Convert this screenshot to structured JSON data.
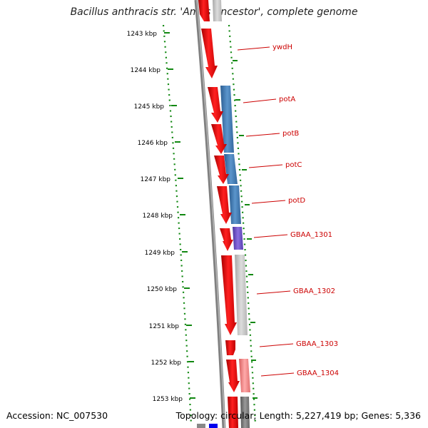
{
  "title": "Bacillus anthracis str. 'Ames Ancestor', complete genome",
  "footer": {
    "accession": "Accession: NC_007530",
    "summary": "Topology: circular; Length: 5,227,419 bp; Genes: 5,336"
  },
  "colors": {
    "tick": "#118811",
    "backbone": "#808080",
    "label": "#cc0000",
    "gene_red": "#ee0000",
    "gene_blue": "#3d78b4",
    "gene_purple": "#6b4fc8",
    "gene_gray": "#c4c4c4",
    "gene_pink": "#f08a8a"
  },
  "ticks": [
    "1243 kbp",
    "1244 kbp",
    "1245 kbp",
    "1246 kbp",
    "1247 kbp",
    "1248 kbp",
    "1249 kbp",
    "1250 kbp",
    "1251 kbp",
    "1252 kbp",
    "1253 kbp"
  ],
  "gene_labels": [
    "ywdH",
    "potA",
    "potB",
    "potC",
    "potD",
    "GBAA_1301",
    "GBAA_1302",
    "GBAA_1303",
    "GBAA_1304"
  ]
}
